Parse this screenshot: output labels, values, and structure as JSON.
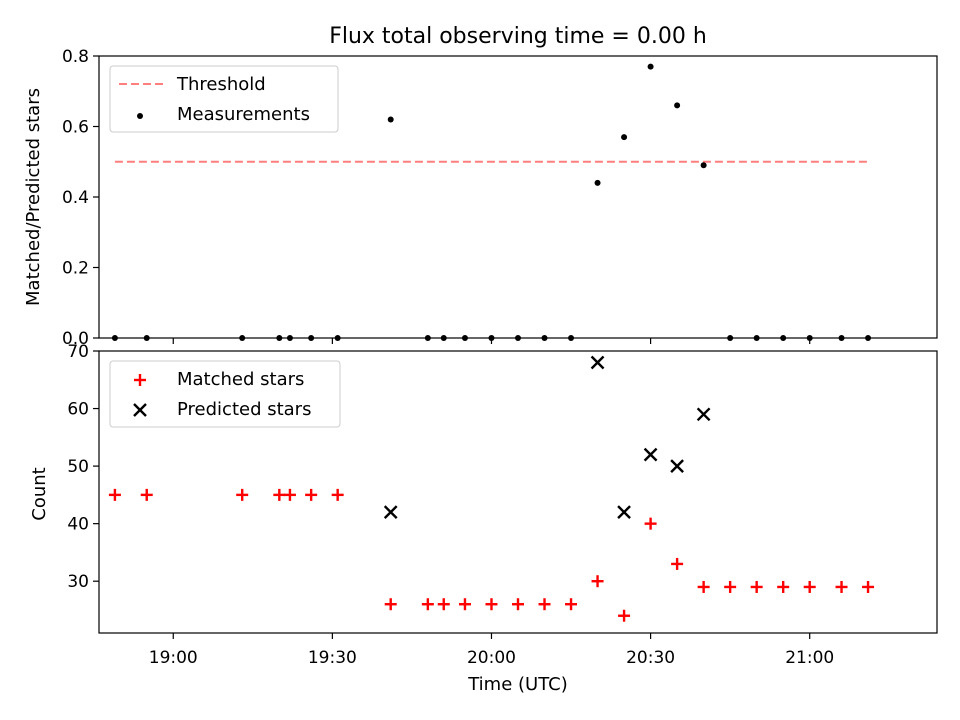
{
  "chart_data": {
    "title": "Flux total observing time = 0.00 h",
    "xlabel": "Time (UTC)",
    "x_ticks": [
      "19:00",
      "19:30",
      "20:00",
      "20:30",
      "21:00"
    ],
    "x_tick_minutes": [
      1140,
      1170,
      1200,
      1230,
      1260
    ],
    "xlim": [
      "18:46",
      "21:24"
    ],
    "x": [
      "18:49",
      "18:55",
      "19:13",
      "19:20",
      "19:22",
      "19:26",
      "19:31",
      "19:41",
      "19:48",
      "19:51",
      "19:55",
      "20:00",
      "20:05",
      "20:10",
      "20:15",
      "20:20",
      "20:25",
      "20:30",
      "20:35",
      "20:40",
      "20:45",
      "20:50",
      "20:55",
      "21:00",
      "21:06",
      "21:11"
    ],
    "panels": [
      {
        "type": "scatter",
        "ylabel": "Matched/Predicted stars",
        "ylim": [
          0,
          0.8
        ],
        "y_ticks": [
          0.0,
          0.2,
          0.4,
          0.6,
          0.8
        ],
        "y_tick_labels": [
          "0.0",
          "0.2",
          "0.4",
          "0.6",
          "0.8"
        ],
        "legend_position": "upper-left",
        "series": [
          {
            "name": "Threshold",
            "type": "line",
            "style": "dashed",
            "color": "#ff7f7f",
            "x": [
              "18:49",
              "21:11"
            ],
            "y": [
              0.5,
              0.5
            ]
          },
          {
            "name": "Measurements",
            "type": "scatter",
            "marker": "dot",
            "color": "#000000",
            "y": [
              0,
              0,
              0,
              0,
              0,
              0,
              0,
              0.62,
              0,
              0,
              0,
              0,
              0,
              0,
              0,
              0.44,
              0.57,
              0.77,
              0.66,
              0.49,
              0,
              0,
              0,
              0,
              0,
              0
            ]
          }
        ]
      },
      {
        "type": "scatter",
        "ylabel": "Count",
        "ylim": [
          21,
          70
        ],
        "y_ticks": [
          30,
          40,
          50,
          60,
          70
        ],
        "y_tick_labels": [
          "30",
          "40",
          "50",
          "60",
          "70"
        ],
        "legend_position": "upper-left",
        "series": [
          {
            "name": "Matched stars",
            "type": "scatter",
            "marker": "plus",
            "color": "#ff0000",
            "y": [
              45,
              45,
              45,
              45,
              45,
              45,
              45,
              26,
              26,
              26,
              26,
              26,
              26,
              26,
              26,
              30,
              24,
              40,
              33,
              29,
              29,
              29,
              29,
              29,
              29,
              29
            ]
          },
          {
            "name": "Predicted stars",
            "type": "scatter",
            "marker": "x",
            "color": "#000000",
            "x": [
              "19:41",
              "20:20",
              "20:25",
              "20:30",
              "20:35",
              "20:40"
            ],
            "y": [
              42,
              68,
              42,
              52,
              50,
              59
            ]
          }
        ]
      }
    ]
  }
}
